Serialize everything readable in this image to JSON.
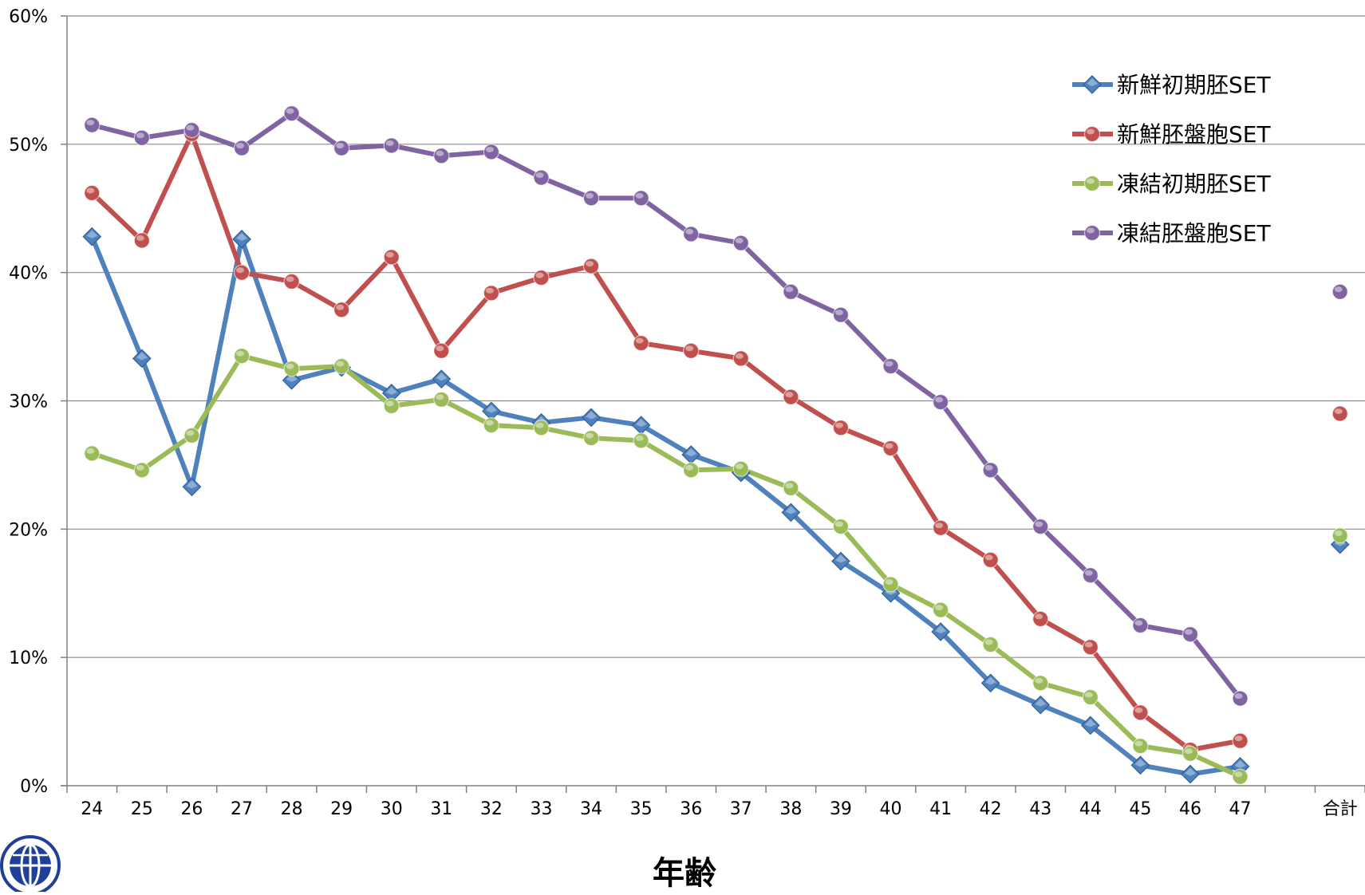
{
  "chart_data": {
    "type": "line",
    "title": "",
    "xlabel": "年齢",
    "ylabel": "",
    "categories": [
      "24",
      "25",
      "26",
      "27",
      "28",
      "29",
      "30",
      "31",
      "32",
      "33",
      "34",
      "35",
      "36",
      "37",
      "38",
      "39",
      "40",
      "41",
      "42",
      "43",
      "44",
      "45",
      "46",
      "47",
      "",
      "合計"
    ],
    "yticks": [
      "0%",
      "10%",
      "20%",
      "30%",
      "40%",
      "50%",
      "60%"
    ],
    "ylim": [
      0,
      60
    ],
    "grid": true,
    "legend_position": "top-right",
    "series": [
      {
        "name": "新鮮初期胚SET",
        "color": "#4F81BD",
        "marker": "diamond",
        "values": [
          42.8,
          33.3,
          23.3,
          42.6,
          31.6,
          32.6,
          30.6,
          31.7,
          29.2,
          28.3,
          28.7,
          28.1,
          25.8,
          24.4,
          21.3,
          17.5,
          15.0,
          12.0,
          8.0,
          6.3,
          4.7,
          1.6,
          0.9,
          1.5,
          null,
          18.8
        ]
      },
      {
        "name": "新鮮胚盤胞SET",
        "color": "#C0504D",
        "marker": "circle",
        "values": [
          46.2,
          42.5,
          50.8,
          40.0,
          39.3,
          37.1,
          41.2,
          33.9,
          38.4,
          39.6,
          40.5,
          34.5,
          33.9,
          33.3,
          30.3,
          27.9,
          26.3,
          20.1,
          17.6,
          13.0,
          10.8,
          5.7,
          2.8,
          3.5,
          null,
          29.0
        ]
      },
      {
        "name": "凍結初期胚SET",
        "color": "#9BBB59",
        "marker": "circle",
        "values": [
          25.9,
          24.6,
          27.3,
          33.5,
          32.5,
          32.7,
          29.6,
          30.1,
          28.1,
          27.9,
          27.1,
          26.9,
          24.6,
          24.7,
          23.2,
          20.2,
          15.7,
          13.7,
          11.0,
          8.0,
          6.9,
          3.1,
          2.5,
          0.7,
          null,
          19.5
        ]
      },
      {
        "name": "凍結胚盤胞SET",
        "color": "#8064A2",
        "marker": "circle",
        "values": [
          51.5,
          50.5,
          51.1,
          49.7,
          52.4,
          49.7,
          49.9,
          49.1,
          49.4,
          47.4,
          45.8,
          45.8,
          43.0,
          42.3,
          38.5,
          36.7,
          32.7,
          29.9,
          24.6,
          20.2,
          16.4,
          12.5,
          11.8,
          6.8,
          null,
          38.5
        ]
      }
    ]
  },
  "colors": {
    "axis": "#808080",
    "grid": "#8c8c8c",
    "logo": "#1F3F99"
  },
  "icons": {
    "logo": "globe-logo-icon"
  }
}
